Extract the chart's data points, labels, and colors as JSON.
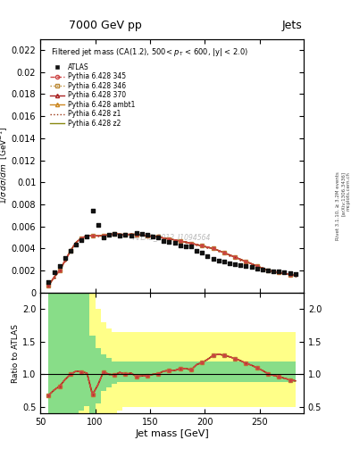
{
  "title_top": "7000 GeV pp",
  "title_right": "Jets",
  "subplot_title": "Filtered jet mass (CA(1.2), 500< p_{T} < 600, |y| < 2.0)",
  "xlabel": "Jet mass [GeV]",
  "ylabel_main": "1/σ dσ/dm [GeV⁻¹]",
  "ylabel_ratio": "Ratio to ATLAS",
  "watermark": "ATLAS_2012_I1094564",
  "right_label": "Rivet 3.1.10, ≥ 3.2M events",
  "arxiv_label": "[arXiv:1306.3436]",
  "mcplots_label": "mcplots.cern.ch",
  "xlim": [
    50,
    290
  ],
  "ylim_main": [
    0,
    0.023
  ],
  "ylim_ratio": [
    0.4,
    2.25
  ],
  "yticks_main": [
    0,
    0.002,
    0.004,
    0.006,
    0.008,
    0.01,
    0.012,
    0.014,
    0.016,
    0.018,
    0.02,
    0.022
  ],
  "yticks_ratio": [
    0.5,
    1.0,
    1.5,
    2.0
  ],
  "xticks": [
    50,
    100,
    150,
    200,
    250
  ],
  "atlas_x": [
    57.5,
    62.5,
    67.5,
    72.5,
    77.5,
    82.5,
    87.5,
    92.5,
    97.5,
    102.5,
    107.5,
    112.5,
    117.5,
    122.5,
    127.5,
    132.5,
    137.5,
    142.5,
    147.5,
    152.5,
    157.5,
    162.5,
    167.5,
    172.5,
    177.5,
    182.5,
    187.5,
    192.5,
    197.5,
    202.5,
    207.5,
    212.5,
    217.5,
    222.5,
    227.5,
    232.5,
    237.5,
    242.5,
    247.5,
    252.5,
    257.5,
    262.5,
    267.5,
    272.5,
    277.5,
    282.5
  ],
  "atlas_y": [
    0.00095,
    0.00185,
    0.00245,
    0.00315,
    0.0038,
    0.00435,
    0.00475,
    0.00505,
    0.00745,
    0.00615,
    0.005,
    0.00525,
    0.00535,
    0.00515,
    0.00525,
    0.0052,
    0.00545,
    0.00535,
    0.00525,
    0.0051,
    0.005,
    0.0047,
    0.0046,
    0.0045,
    0.0043,
    0.0042,
    0.0042,
    0.0038,
    0.0036,
    0.00335,
    0.0031,
    0.0029,
    0.0028,
    0.0027,
    0.0026,
    0.0025,
    0.0024,
    0.0023,
    0.0022,
    0.0021,
    0.002,
    0.00195,
    0.0019,
    0.00185,
    0.0018,
    0.00172
  ],
  "mc_x": [
    57.5,
    62.5,
    67.5,
    72.5,
    77.5,
    82.5,
    87.5,
    92.5,
    97.5,
    102.5,
    107.5,
    112.5,
    117.5,
    122.5,
    127.5,
    132.5,
    137.5,
    142.5,
    147.5,
    152.5,
    157.5,
    162.5,
    167.5,
    172.5,
    177.5,
    182.5,
    187.5,
    192.5,
    197.5,
    202.5,
    207.5,
    212.5,
    217.5,
    222.5,
    227.5,
    232.5,
    237.5,
    242.5,
    247.5,
    252.5,
    257.5,
    262.5,
    267.5,
    272.5,
    277.5,
    282.5
  ],
  "mc_y": [
    0.00065,
    0.0014,
    0.002,
    0.0029,
    0.0038,
    0.00455,
    0.00495,
    0.00515,
    0.00515,
    0.00515,
    0.00518,
    0.00525,
    0.00532,
    0.0053,
    0.00525,
    0.0053,
    0.00528,
    0.00522,
    0.00515,
    0.0051,
    0.00505,
    0.00495,
    0.00488,
    0.00478,
    0.00468,
    0.00458,
    0.00448,
    0.00436,
    0.00424,
    0.00412,
    0.004,
    0.00382,
    0.00362,
    0.00342,
    0.00322,
    0.00302,
    0.00282,
    0.00262,
    0.00242,
    0.00222,
    0.00202,
    0.00192,
    0.00183,
    0.00174,
    0.00165,
    0.00155
  ],
  "ratio_mc": [
    0.68,
    0.76,
    0.82,
    0.92,
    1.0,
    1.05,
    1.04,
    1.02,
    0.69,
    0.84,
    1.04,
    1.0,
    0.995,
    1.03,
    1.0,
    1.02,
    0.97,
    0.975,
    0.98,
    1.0,
    1.01,
    1.05,
    1.06,
    1.06,
    1.09,
    1.09,
    1.07,
    1.15,
    1.18,
    1.23,
    1.29,
    1.31,
    1.29,
    1.27,
    1.24,
    1.21,
    1.17,
    1.14,
    1.1,
    1.06,
    1.01,
    0.985,
    0.963,
    0.941,
    0.917,
    0.901
  ],
  "yellow_lo": [
    0.4,
    0.4,
    0.4,
    0.4,
    0.4,
    0.4,
    0.4,
    0.4,
    0.4,
    0.4,
    0.4,
    0.4,
    0.4,
    0.44,
    0.5,
    0.5,
    0.5,
    0.5,
    0.5,
    0.5,
    0.5,
    0.5,
    0.5,
    0.5,
    0.5,
    0.5,
    0.5,
    0.5,
    0.5,
    0.5,
    0.5,
    0.5,
    0.5,
    0.5,
    0.5,
    0.5,
    0.5,
    0.5,
    0.5,
    0.5,
    0.5,
    0.5,
    0.5,
    0.5,
    0.5,
    0.5
  ],
  "yellow_hi": [
    2.5,
    2.5,
    2.5,
    2.5,
    2.5,
    2.5,
    2.5,
    2.5,
    2.5,
    2.0,
    1.8,
    1.7,
    1.65,
    1.65,
    1.65,
    1.65,
    1.65,
    1.65,
    1.65,
    1.65,
    1.65,
    1.65,
    1.65,
    1.65,
    1.65,
    1.65,
    1.65,
    1.65,
    1.65,
    1.65,
    1.65,
    1.65,
    1.65,
    1.65,
    1.65,
    1.65,
    1.65,
    1.65,
    1.65,
    1.65,
    1.65,
    1.65,
    1.65,
    1.65,
    1.65,
    1.65
  ],
  "green_lo": [
    0.4,
    0.4,
    0.4,
    0.4,
    0.4,
    0.4,
    0.45,
    0.52,
    0.4,
    0.55,
    0.75,
    0.8,
    0.85,
    0.88,
    0.88,
    0.88,
    0.88,
    0.88,
    0.88,
    0.88,
    0.88,
    0.88,
    0.88,
    0.88,
    0.88,
    0.88,
    0.88,
    0.88,
    0.88,
    0.88,
    0.88,
    0.88,
    0.88,
    0.88,
    0.88,
    0.88,
    0.88,
    0.88,
    0.88,
    0.88,
    0.88,
    0.88,
    0.88,
    0.88,
    0.88,
    0.88
  ],
  "green_hi": [
    2.5,
    2.5,
    2.5,
    2.5,
    2.5,
    2.5,
    2.5,
    2.5,
    1.6,
    1.4,
    1.3,
    1.25,
    1.2,
    1.2,
    1.2,
    1.2,
    1.2,
    1.2,
    1.2,
    1.2,
    1.2,
    1.2,
    1.2,
    1.2,
    1.2,
    1.2,
    1.2,
    1.2,
    1.2,
    1.2,
    1.2,
    1.2,
    1.2,
    1.2,
    1.2,
    1.2,
    1.2,
    1.2,
    1.2,
    1.2,
    1.2,
    1.2,
    1.2,
    1.2,
    1.2,
    1.2
  ],
  "color_345": "#cc4444",
  "color_346": "#bb8833",
  "color_370": "#aa2222",
  "color_ambt1": "#cc8822",
  "color_z1": "#993311",
  "color_z2": "#888811",
  "color_atlas": "#111111",
  "bg_color": "#ffffff"
}
